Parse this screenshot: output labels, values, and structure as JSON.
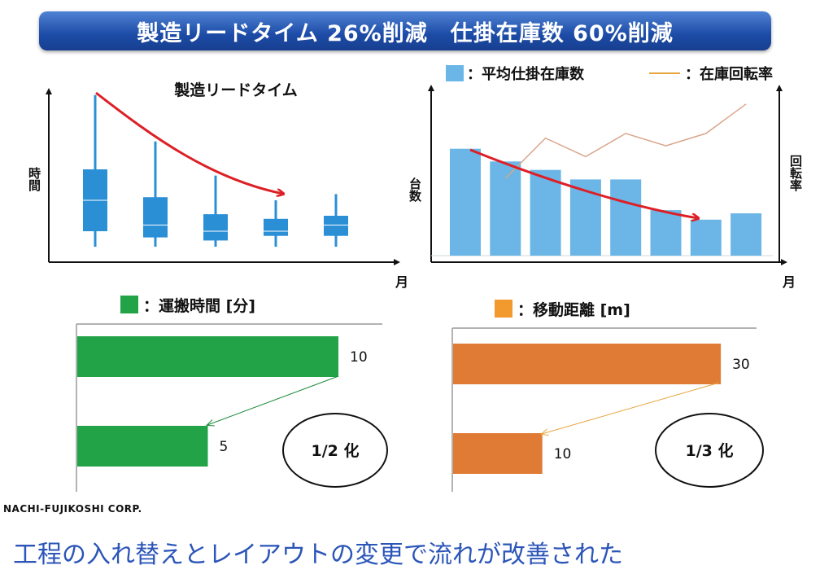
{
  "header": {
    "title": "製造リードタイム 26%削減　仕掛在庫数 60%削減"
  },
  "colors": {
    "box": "#2b8fd6",
    "bar_blue": "#6bb6e6",
    "line_brown": "#d9a58a",
    "arrow_red": "#dd1f26",
    "green": "#22a347",
    "orange": "#e07b35",
    "caption_blue": "#2b55b8",
    "banner": "#1c4ba6"
  },
  "chart_data": [
    {
      "type": "boxplot",
      "title": "製造リードタイム",
      "ylabel": "時間",
      "xlabel": "月",
      "trend": "decreasing",
      "series": [
        {
          "whisker_low": 1.0,
          "q1": 2.0,
          "median": 4.0,
          "q3": 6.0,
          "whisker_high": 10.8
        },
        {
          "whisker_low": 1.0,
          "q1": 1.6,
          "median": 2.4,
          "q3": 4.2,
          "whisker_high": 7.8
        },
        {
          "whisker_low": 1.0,
          "q1": 1.4,
          "median": 2.0,
          "q3": 3.1,
          "whisker_high": 5.6
        },
        {
          "whisker_low": 1.0,
          "q1": 1.7,
          "median": 2.0,
          "q3": 2.8,
          "whisker_high": 4.0
        },
        {
          "whisker_low": 1.0,
          "q1": 1.7,
          "median": 2.4,
          "q3": 3.0,
          "whisker_high": 4.4
        }
      ]
    },
    {
      "type": "bar",
      "ylabel": "台数",
      "y2label": "回転率",
      "xlabel": "月",
      "legend": [
        {
          "marker": "square",
          "label": "：平均仕掛在庫数"
        },
        {
          "marker": "line",
          "label": "：在庫回転率"
        }
      ],
      "series": [
        {
          "name": "平均仕掛在庫数",
          "values": [
            10.1,
            8.9,
            8.1,
            7.2,
            7.2,
            4.3,
            3.4,
            4.0
          ]
        },
        {
          "name": "在庫回転率",
          "values": [
            null,
            5.0,
            7.6,
            6.4,
            7.9,
            7.1,
            7.9,
            9.8
          ]
        }
      ]
    },
    {
      "type": "bar",
      "orientation": "horizontal",
      "legend": "：運搬時間 [分]",
      "values": [
        10,
        5
      ],
      "labels": [
        "10",
        "5"
      ],
      "note": "1/2 化"
    },
    {
      "type": "bar",
      "orientation": "horizontal",
      "legend": "：移動距離 [m]",
      "values": [
        30,
        10
      ],
      "labels": [
        "30",
        "10"
      ],
      "note": "1/3 化"
    }
  ],
  "footer": {
    "company": "NACHI-FUJIKOSHI CORP.",
    "caption": "工程の入れ替えとレイアウトの変更で流れが改善された"
  }
}
